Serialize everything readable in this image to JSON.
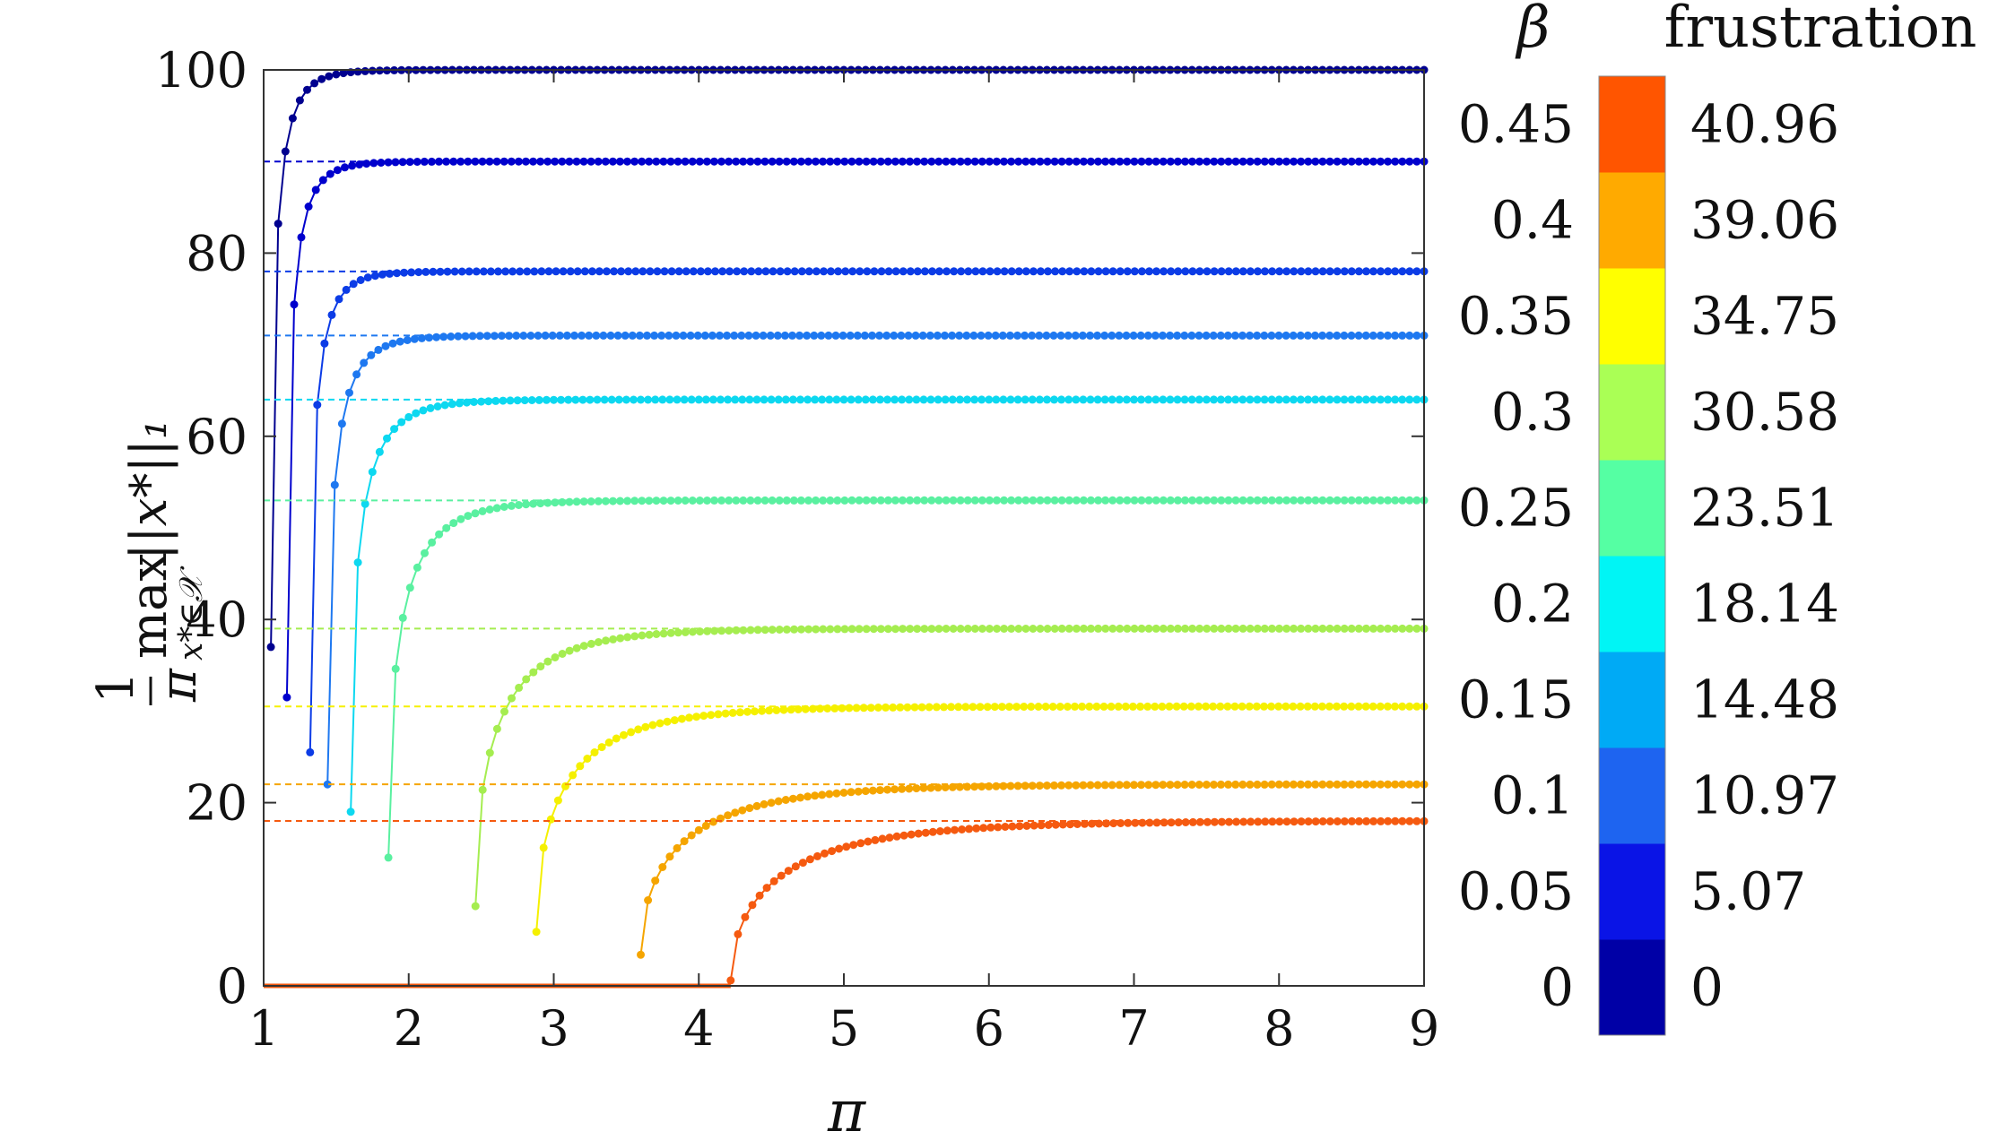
{
  "chart_data": {
    "type": "line",
    "xlabel": "π",
    "ylabel": "1/π max_{x*∈X} ||x*||₁",
    "xlim": [
      1,
      9
    ],
    "ylim": [
      0,
      100
    ],
    "x_ticks": [
      "1",
      "2",
      "3",
      "4",
      "5",
      "6",
      "7",
      "8",
      "9"
    ],
    "y_ticks": [
      "0",
      "20",
      "40",
      "60",
      "80",
      "100"
    ],
    "grid": false,
    "colorbar": {
      "beta_header": "β",
      "frustration_header": "frustration",
      "beta_labels": [
        "0",
        "0.05",
        "0.1",
        "0.15",
        "0.2",
        "0.25",
        "0.3",
        "0.35",
        "0.4",
        "0.45"
      ],
      "frustration_labels": [
        "0",
        "5.07",
        "10.97",
        "14.48",
        "18.14",
        "23.51",
        "30.58",
        "34.75",
        "39.06",
        "40.96"
      ],
      "colors": [
        "#0000a6",
        "#0a14e6",
        "#1e64f0",
        "#00aaf5",
        "#00f5f5",
        "#55ffa3",
        "#aaff55",
        "#ffff00",
        "#ffaa00",
        "#ff5500"
      ]
    },
    "series": [
      {
        "color": "#00008f",
        "asymptote": 100,
        "x_start": 1.05,
        "y_start": 37
      },
      {
        "color": "#0000cd",
        "asymptote": 90,
        "x_start": 1.16,
        "y_start": 31.5
      },
      {
        "color": "#0c3ce6",
        "asymptote": 78,
        "x_start": 1.32,
        "y_start": 25.5
      },
      {
        "color": "#1e78f0",
        "asymptote": 71,
        "x_start": 1.44,
        "y_start": 22
      },
      {
        "color": "#0dd8f0",
        "asymptote": 64,
        "x_start": 1.6,
        "y_start": 19
      },
      {
        "color": "#5af0a0",
        "asymptote": 53,
        "x_start": 1.86,
        "y_start": 14
      },
      {
        "color": "#a5ed50",
        "asymptote": 39,
        "x_start": 2.46,
        "y_start": 8.7
      },
      {
        "color": "#f5f000",
        "asymptote": 30.5,
        "x_start": 2.88,
        "y_start": 5.9
      },
      {
        "color": "#f5a500",
        "asymptote": 22,
        "x_start": 3.6,
        "y_start": 3.4
      },
      {
        "color": "#f55a10",
        "asymptote": 18,
        "x_start": 4.22,
        "y_start": 0.6,
        "zero_from": 1
      }
    ]
  }
}
